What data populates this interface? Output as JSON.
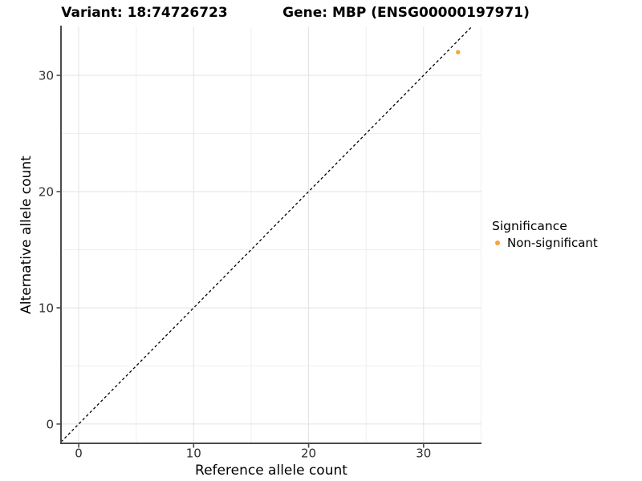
{
  "titles": {
    "left": "Variant: 18:74726723",
    "right": "Gene: MBP (ENSG00000197971)"
  },
  "chart_data": {
    "type": "scatter",
    "points": [
      {
        "x": 33,
        "y": 32,
        "series": "Non-significant"
      }
    ],
    "xlabel": "Reference allele count",
    "ylabel": "Alternative allele count",
    "xlim": [
      -1.54,
      35.04
    ],
    "ylim": [
      -1.66,
      34.21
    ],
    "x_ticks": [
      0,
      10,
      20,
      30
    ],
    "y_ticks": [
      0,
      10,
      20,
      30
    ],
    "x_minor_ticks": [
      5,
      15,
      25,
      35
    ],
    "y_minor_ticks": [
      5,
      15,
      25
    ],
    "grid": "major+minor",
    "abline": {
      "slope": 1,
      "intercept": 0,
      "style": "dashed"
    },
    "legend": {
      "title": "Significance",
      "position": "right",
      "entries": [
        {
          "label": "Non-significant",
          "color": "#F8A33B"
        }
      ]
    }
  },
  "colors": {
    "background": "#ffffff",
    "point": "#F8A33B",
    "axis_line": "#4b4b4b",
    "tick_label": "#303030",
    "grid_major": "#e3e3e3",
    "grid_minor": "#efefef",
    "dashed_line": "#000000",
    "title_text": "#000000"
  }
}
